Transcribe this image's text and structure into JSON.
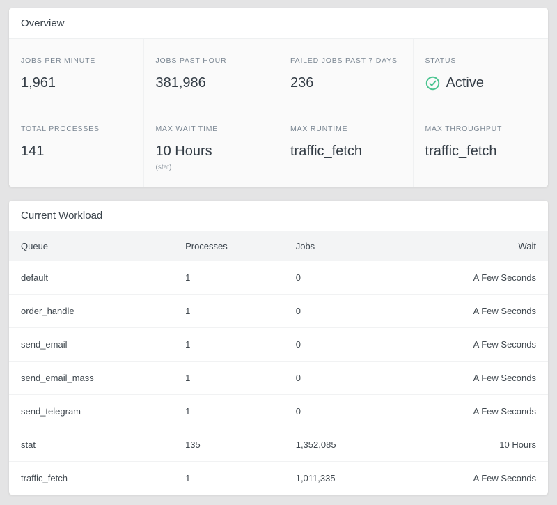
{
  "colors": {
    "status_active_green": "#4ac490",
    "page_background": "#e4e4e5"
  },
  "overview": {
    "title": "Overview",
    "stats": [
      {
        "label": "JOBS PER MINUTE",
        "value": "1,961"
      },
      {
        "label": "JOBS PAST HOUR",
        "value": "381,986"
      },
      {
        "label": "FAILED JOBS PAST 7 DAYS",
        "value": "236"
      },
      {
        "label": "STATUS",
        "value": "Active",
        "icon": "check-circle-icon"
      },
      {
        "label": "TOTAL PROCESSES",
        "value": "141"
      },
      {
        "label": "MAX WAIT TIME",
        "value": "10 Hours",
        "sub": "(stat)"
      },
      {
        "label": "MAX RUNTIME",
        "value": "traffic_fetch"
      },
      {
        "label": "MAX THROUGHPUT",
        "value": "traffic_fetch"
      }
    ]
  },
  "workload": {
    "title": "Current Workload",
    "columns": [
      "Queue",
      "Processes",
      "Jobs",
      "Wait"
    ],
    "rows": [
      [
        "default",
        "1",
        "0",
        "A Few Seconds"
      ],
      [
        "order_handle",
        "1",
        "0",
        "A Few Seconds"
      ],
      [
        "send_email",
        "1",
        "0",
        "A Few Seconds"
      ],
      [
        "send_email_mass",
        "1",
        "0",
        "A Few Seconds"
      ],
      [
        "send_telegram",
        "1",
        "0",
        "A Few Seconds"
      ],
      [
        "stat",
        "135",
        "1,352,085",
        "10 Hours"
      ],
      [
        "traffic_fetch",
        "1",
        "1,011,335",
        "A Few Seconds"
      ]
    ]
  }
}
